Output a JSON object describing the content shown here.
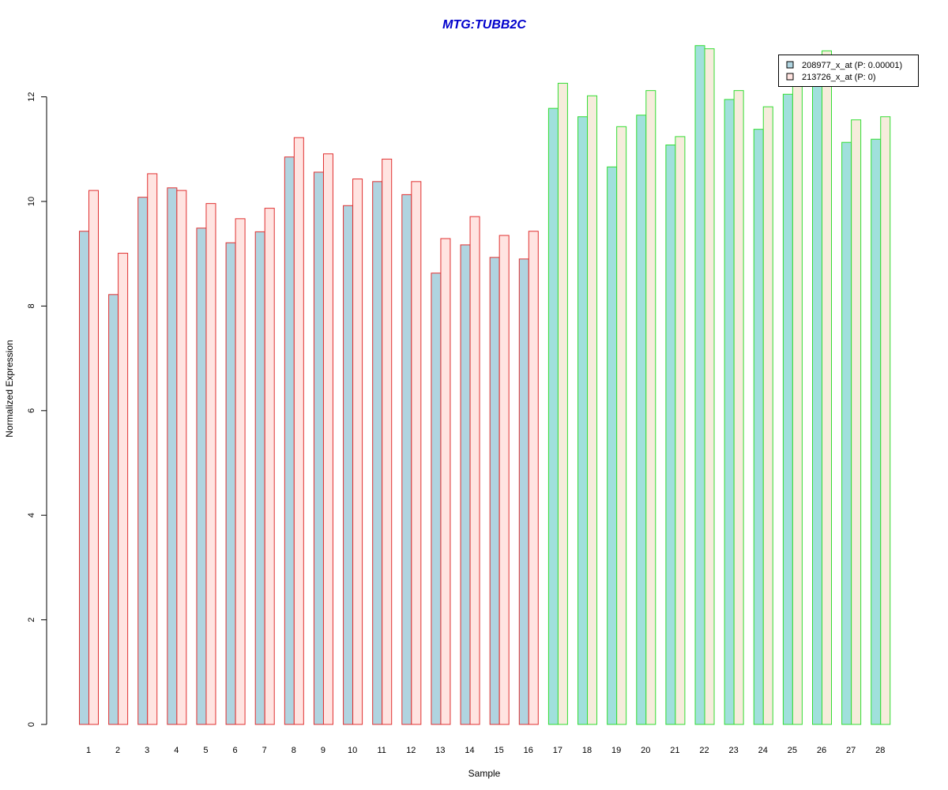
{
  "chart_data": {
    "type": "bar",
    "title": "MTG:TUBB2C",
    "xlabel": "Sample",
    "ylabel": "Normalized Expression",
    "ylim": [
      0,
      13
    ],
    "yticks": [
      0,
      2,
      4,
      6,
      8,
      10,
      12
    ],
    "categories": [
      "1",
      "2",
      "3",
      "4",
      "5",
      "6",
      "7",
      "8",
      "9",
      "10",
      "11",
      "12",
      "13",
      "14",
      "15",
      "16",
      "17",
      "18",
      "19",
      "20",
      "21",
      "22",
      "23",
      "24",
      "25",
      "26",
      "27",
      "28"
    ],
    "series": [
      {
        "name": "208977_x_at (P: 0.00001)",
        "values": [
          9.43,
          8.22,
          10.08,
          10.26,
          9.49,
          9.21,
          9.42,
          10.85,
          10.56,
          9.92,
          10.38,
          10.13,
          8.63,
          9.17,
          8.93,
          8.9,
          11.78,
          11.62,
          10.66,
          11.65,
          11.08,
          12.98,
          11.95,
          11.38,
          12.05,
          12.23,
          11.13,
          11.19
        ]
      },
      {
        "name": "213726_x_at (P: 0)",
        "values": [
          10.21,
          9.01,
          10.53,
          10.21,
          9.96,
          9.67,
          9.87,
          11.22,
          10.91,
          10.43,
          10.81,
          10.38,
          9.29,
          9.71,
          9.35,
          9.43,
          12.26,
          12.02,
          11.43,
          12.12,
          11.24,
          12.92,
          12.12,
          11.81,
          12.22,
          12.88,
          11.56,
          11.62
        ]
      }
    ],
    "legend": {
      "position": "top-right"
    },
    "colors": {
      "title": "#0000cc",
      "series1_fill": "#b0d4e0",
      "series2_fill": "#ffe4e1",
      "group1_border": "#e03030",
      "group2_border": "#33dd33",
      "group2_series1_fill": "#a0e0dc",
      "group2_series2_fill": "#f6ecdc",
      "axis": "#000000"
    },
    "groups": [
      {
        "from": 1,
        "to": 16,
        "border": "group1_border"
      },
      {
        "from": 17,
        "to": 28,
        "border": "group2_border"
      }
    ]
  }
}
